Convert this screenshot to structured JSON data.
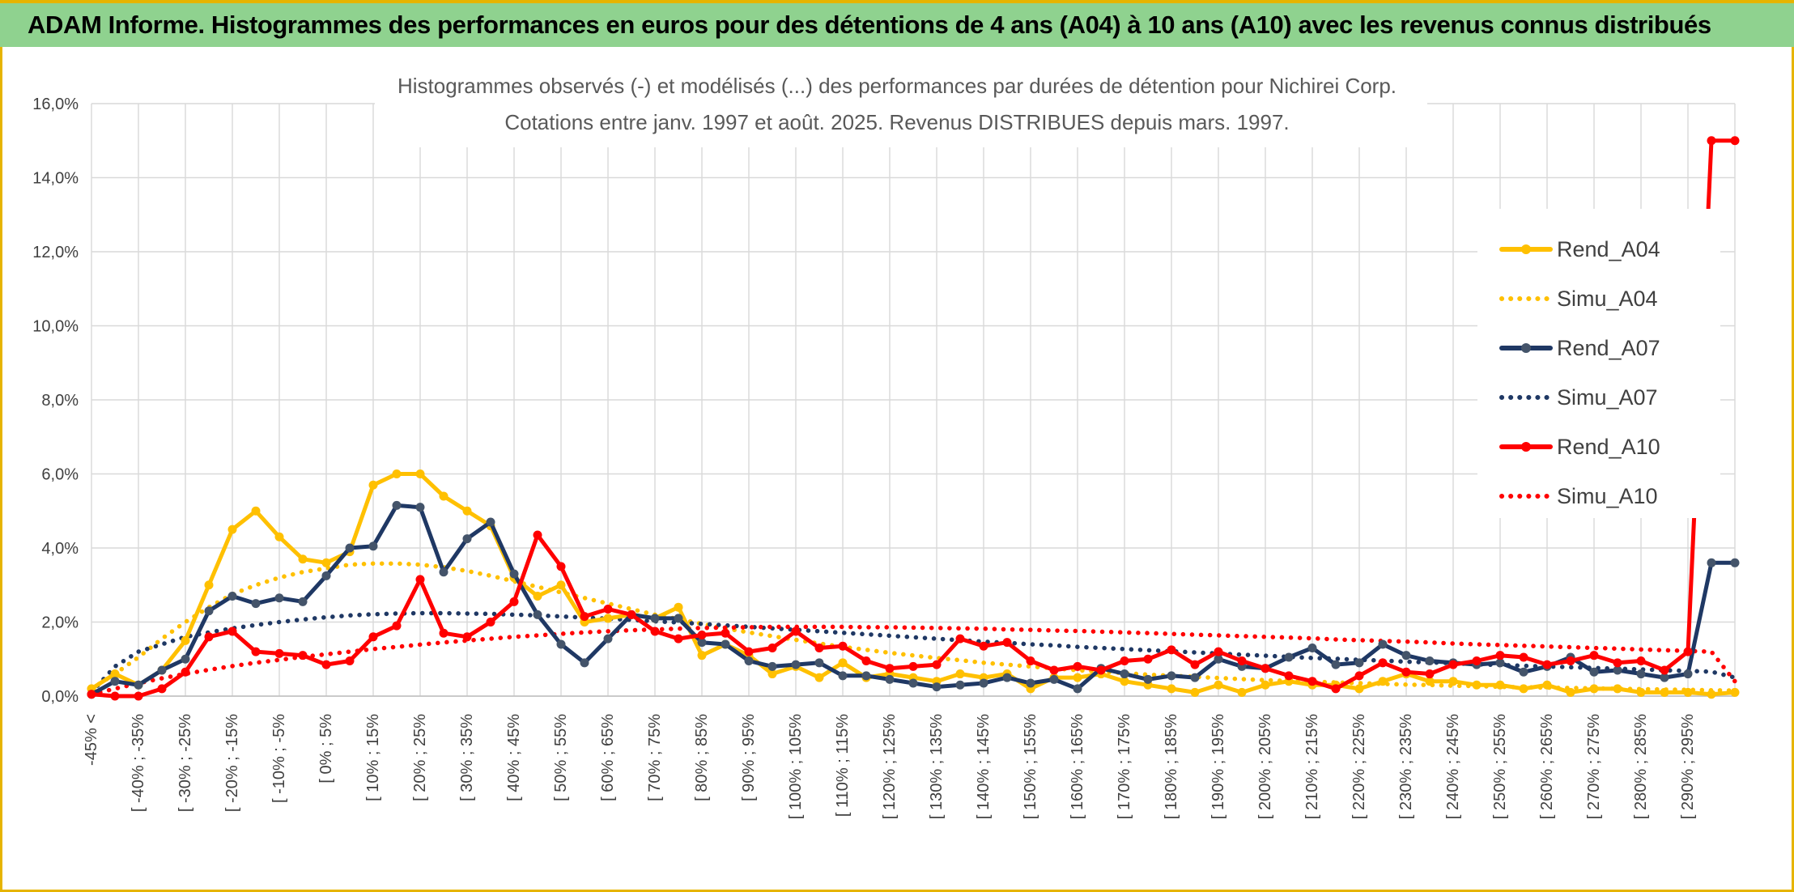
{
  "header": {
    "title": "ADAM Informe. Histogrammes des performances en euros pour des détentions de 4 ans (A04) à 10 ans (A10) avec les revenus connus distribués"
  },
  "chart_data": {
    "type": "line",
    "title": "Histogrammes observés (-) et modélisés (...) des performances par durées de détention pour Nichirei Corp.",
    "subtitle": "Cotations entre janv. 1997 et août. 2025. Revenus DISTRIBUES depuis mars. 1997.",
    "xlabel": "",
    "ylabel": "",
    "ylim": [
      0,
      16
    ],
    "y_ticks": [
      "0,0%",
      "2,0%",
      "4,0%",
      "6,0%",
      "8,0%",
      "10,0%",
      "12,0%",
      "14,0%",
      "16,0%"
    ],
    "grid": true,
    "legend_position": "right",
    "x_tick_labels": [
      "-45% <",
      "[ -40% ; -35%",
      "[ -30% ; -25%",
      "[ -20% ; -15%",
      "[ -10% ; -5%",
      "[ 0% ; 5%",
      "[ 10% ; 15%",
      "[ 20% ; 25%",
      "[ 30% ; 35%",
      "[ 40% ; 45%",
      "[ 50% ; 55%",
      "[ 60% ; 65%",
      "[ 70% ; 75%",
      "[ 80% ; 85%",
      "[ 90% ; 95%",
      "[ 100% ; 105%",
      "[ 110% ; 115%",
      "[ 120% ; 125%",
      "[ 130% ; 135%",
      "[ 140% ; 145%",
      "[ 150% ; 155%",
      "[ 160% ; 165%",
      "[ 170% ; 175%",
      "[ 180% ; 185%",
      "[ 190% ; 195%",
      "[ 200% ; 205%",
      "[ 210% ; 215%",
      "[ 220% ; 225%",
      "[ 230% ; 235%",
      "[ 240% ; 245%",
      "[ 250% ; 255%",
      "[ 260% ; 265%",
      "[ 270% ; 275%",
      "[ 280% ; 285%",
      "[ 290% ; 295%"
    ],
    "series": [
      {
        "name": "Rend_A04",
        "color": "#ffc000",
        "style": "solid",
        "values": [
          0.2,
          0.6,
          0.3,
          0.7,
          1.5,
          3.0,
          4.5,
          5.0,
          4.3,
          3.7,
          3.6,
          3.9,
          5.7,
          6.0,
          6.0,
          5.4,
          5.0,
          4.6,
          3.2,
          2.7,
          3.0,
          2.0,
          2.1,
          2.2,
          2.1,
          2.4,
          1.1,
          1.4,
          1.1,
          0.6,
          0.8,
          0.5,
          0.9,
          0.5,
          0.6,
          0.5,
          0.4,
          0.6,
          0.5,
          0.6,
          0.2,
          0.5,
          0.5,
          0.6,
          0.4,
          0.3,
          0.2,
          0.1,
          0.3,
          0.1,
          0.3,
          0.4,
          0.3,
          0.3,
          0.2,
          0.4,
          0.6,
          0.4,
          0.4,
          0.3,
          0.3,
          0.2,
          0.3,
          0.1,
          0.2,
          0.2,
          0.1,
          0.1,
          0.1,
          0.05,
          0.1
        ]
      },
      {
        "name": "Simu_A04",
        "color": "#ffc000",
        "style": "dotted",
        "values": [
          0.2,
          0.6,
          1.05,
          1.55,
          2.0,
          2.4,
          2.75,
          3.0,
          3.2,
          3.35,
          3.45,
          3.55,
          3.58,
          3.58,
          3.55,
          3.48,
          3.38,
          3.25,
          3.1,
          2.95,
          2.8,
          2.65,
          2.5,
          2.35,
          2.2,
          2.08,
          1.95,
          1.83,
          1.72,
          1.62,
          1.52,
          1.42,
          1.33,
          1.25,
          1.17,
          1.1,
          1.03,
          0.97,
          0.9,
          0.85,
          0.8,
          0.75,
          0.7,
          0.66,
          0.62,
          0.58,
          0.55,
          0.52,
          0.49,
          0.46,
          0.43,
          0.41,
          0.39,
          0.37,
          0.35,
          0.33,
          0.31,
          0.3,
          0.28,
          0.27,
          0.25,
          0.24,
          0.23,
          0.22,
          0.21,
          0.2,
          0.19,
          0.18,
          0.17,
          0.16,
          0.15
        ]
      },
      {
        "name": "Rend_A07",
        "color": "#1f3864",
        "style": "solid",
        "values": [
          0.05,
          0.4,
          0.3,
          0.7,
          1.0,
          2.3,
          2.7,
          2.5,
          2.65,
          2.55,
          3.25,
          4.0,
          4.05,
          5.15,
          5.1,
          3.35,
          4.25,
          4.7,
          3.3,
          2.2,
          1.4,
          0.9,
          1.55,
          2.2,
          2.1,
          2.1,
          1.45,
          1.4,
          0.95,
          0.8,
          0.85,
          0.9,
          0.55,
          0.55,
          0.45,
          0.35,
          0.25,
          0.3,
          0.35,
          0.5,
          0.35,
          0.45,
          0.2,
          0.75,
          0.6,
          0.45,
          0.55,
          0.5,
          1.0,
          0.8,
          0.75,
          1.05,
          1.3,
          0.85,
          0.9,
          1.4,
          1.1,
          0.95,
          0.9,
          0.85,
          0.9,
          0.65,
          0.8,
          1.05,
          0.65,
          0.7,
          0.6,
          0.5,
          0.6,
          3.6,
          3.6
        ]
      },
      {
        "name": "Simu_A07",
        "color": "#1f3864",
        "style": "dotted",
        "values": [
          0.1,
          0.8,
          1.2,
          1.4,
          1.6,
          1.72,
          1.83,
          1.92,
          2.0,
          2.07,
          2.13,
          2.18,
          2.21,
          2.23,
          2.24,
          2.24,
          2.23,
          2.22,
          2.2,
          2.18,
          2.15,
          2.12,
          2.09,
          2.06,
          2.02,
          1.99,
          1.95,
          1.91,
          1.87,
          1.83,
          1.79,
          1.75,
          1.71,
          1.67,
          1.63,
          1.59,
          1.55,
          1.51,
          1.47,
          1.44,
          1.4,
          1.37,
          1.33,
          1.3,
          1.27,
          1.24,
          1.21,
          1.18,
          1.15,
          1.12,
          1.09,
          1.06,
          1.03,
          1.01,
          0.98,
          0.96,
          0.93,
          0.91,
          0.89,
          0.86,
          0.84,
          0.82,
          0.8,
          0.78,
          0.76,
          0.74,
          0.72,
          0.7,
          0.68,
          0.66,
          0.5
        ]
      },
      {
        "name": "Rend_A10",
        "color": "#ff0000",
        "style": "solid",
        "values": [
          0.05,
          0.0,
          0.0,
          0.2,
          0.65,
          1.6,
          1.75,
          1.2,
          1.15,
          1.1,
          0.85,
          0.95,
          1.6,
          1.9,
          3.15,
          1.7,
          1.6,
          2.0,
          2.55,
          4.35,
          3.5,
          2.15,
          2.35,
          2.2,
          1.75,
          1.55,
          1.65,
          1.7,
          1.2,
          1.3,
          1.75,
          1.3,
          1.35,
          0.95,
          0.75,
          0.8,
          0.85,
          1.55,
          1.35,
          1.45,
          0.95,
          0.7,
          0.8,
          0.7,
          0.95,
          1.0,
          1.25,
          0.85,
          1.2,
          0.95,
          0.75,
          0.55,
          0.4,
          0.2,
          0.55,
          0.9,
          0.65,
          0.6,
          0.85,
          0.95,
          1.1,
          1.05,
          0.85,
          0.95,
          1.1,
          0.9,
          0.95,
          0.7,
          1.2,
          15.0,
          15.0
        ]
      },
      {
        "name": "Simu_A10",
        "color": "#ff0000",
        "style": "dotted",
        "values": [
          0.05,
          0.2,
          0.35,
          0.48,
          0.6,
          0.71,
          0.81,
          0.9,
          0.98,
          1.06,
          1.13,
          1.2,
          1.27,
          1.33,
          1.39,
          1.45,
          1.5,
          1.55,
          1.6,
          1.64,
          1.68,
          1.72,
          1.75,
          1.78,
          1.8,
          1.82,
          1.84,
          1.85,
          1.86,
          1.87,
          1.87,
          1.87,
          1.87,
          1.86,
          1.86,
          1.85,
          1.84,
          1.83,
          1.82,
          1.8,
          1.79,
          1.77,
          1.76,
          1.74,
          1.72,
          1.7,
          1.68,
          1.66,
          1.64,
          1.62,
          1.6,
          1.58,
          1.56,
          1.53,
          1.51,
          1.49,
          1.47,
          1.45,
          1.42,
          1.4,
          1.38,
          1.36,
          1.34,
          1.32,
          1.3,
          1.28,
          1.26,
          1.24,
          1.22,
          1.2,
          0.4
        ]
      }
    ]
  }
}
